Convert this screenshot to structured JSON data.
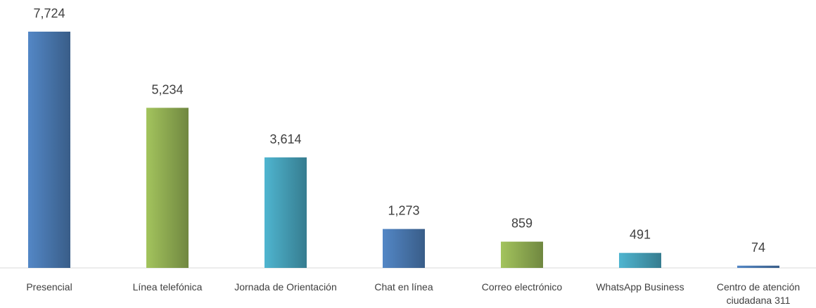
{
  "chart_data": {
    "type": "bar",
    "categories": [
      "Presencial",
      "Línea telefónica",
      "Jornada de Orientación",
      "Chat en línea",
      "Correo electrónico",
      "WhatsApp Business",
      "Centro de atención ciudadana 311"
    ],
    "values": [
      7724,
      5234,
      3614,
      1273,
      859,
      491,
      74
    ],
    "value_labels": [
      "7,724",
      "5,234",
      "3,614",
      "1,273",
      "859",
      "491",
      "74"
    ],
    "colors": [
      "#4f81bd",
      "#9bbb59",
      "#4bacc6",
      "#4f81bd",
      "#9bbb59",
      "#4bacc6",
      "#4f81bd"
    ]
  }
}
